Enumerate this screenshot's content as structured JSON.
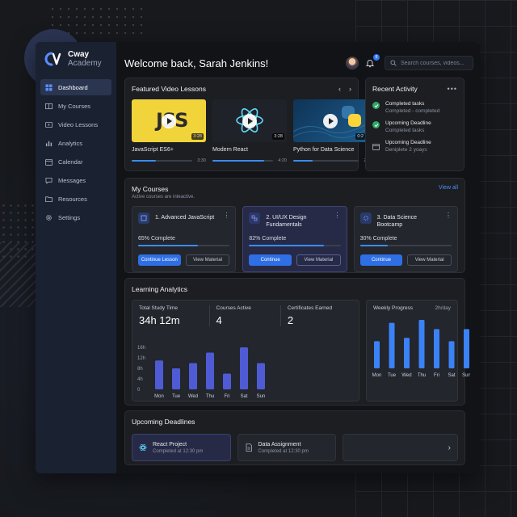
{
  "brand": {
    "name": "Cway",
    "sub": "Academy"
  },
  "nav": [
    {
      "label": "Dashboard",
      "icon": "dashboard-icon",
      "active": true
    },
    {
      "label": "My Courses",
      "icon": "book-icon"
    },
    {
      "label": "Video Lessons",
      "icon": "video-icon"
    },
    {
      "label": "Analytics",
      "icon": "bar-chart-icon"
    },
    {
      "label": "Calendar",
      "icon": "calendar-icon"
    },
    {
      "label": "Messages",
      "icon": "message-icon"
    },
    {
      "label": "Resources",
      "icon": "folder-icon"
    },
    {
      "label": "Settings",
      "icon": "gear-icon"
    }
  ],
  "header": {
    "welcome": "Welcome back, Sarah Jenkins!",
    "notifications": "6",
    "search_placeholder": "Search courses, videos..."
  },
  "featured": {
    "title": "Featured Video Lessons",
    "prev": "‹",
    "next": "›",
    "videos": [
      {
        "title": "JavaScript ES6+",
        "duration": "3:28",
        "time": "3:30",
        "progress": 0.4,
        "thumb_text": "JSS"
      },
      {
        "title": "Modern React",
        "duration": "3:28",
        "time": "4:20",
        "progress": 0.85
      },
      {
        "title": "Python for Data Science",
        "duration": "0:2",
        "time": "2:",
        "progress": 0.3
      }
    ]
  },
  "activity": {
    "title": "Recent Activity",
    "menu": "•••",
    "items": [
      {
        "title": "Completed tasks",
        "sub": "Completed - completed",
        "icon": "check-icon"
      },
      {
        "title": "Upcoming Deadline",
        "sub": "Completed tasks",
        "icon": "check-icon"
      },
      {
        "title": "Upcoming Deadline",
        "sub": "Deniplete 2 yoays",
        "icon": "calendar-icon"
      }
    ]
  },
  "courses": {
    "title": "My Courses",
    "subtitle": "Active courses are inteactive.",
    "view_all": "View all",
    "items": [
      {
        "name": "1. Advanced JavaScript",
        "progress_label": "65% Complete",
        "progress": 0.65,
        "primary": "Continue Lesson",
        "secondary": "View Material"
      },
      {
        "name": "2. UI/UX Design Fundamentals",
        "progress_label": "82% Complete",
        "progress": 0.82,
        "primary": "Continue",
        "secondary": "View Material",
        "selected": true
      },
      {
        "name": "3. Data Science Bootcamp",
        "progress_label": "30% Complete",
        "progress": 0.3,
        "primary": "Continue",
        "secondary": "View Material"
      }
    ],
    "menu": "⋮"
  },
  "analytics": {
    "title": "Learning Analytics",
    "stats": [
      {
        "label": "Total Study Time",
        "value": "34h 12m"
      },
      {
        "label": "Courses Active",
        "value": "4"
      },
      {
        "label": "Certificates Earned",
        "value": "2"
      }
    ],
    "weekly_title": "Weekly Progress",
    "weekly_unit": "2h/day"
  },
  "chart_data": [
    {
      "type": "bar",
      "categories": [
        "Mon",
        "Tue",
        "Wed",
        "Thu",
        "Fri",
        "Sat",
        "Sun"
      ],
      "values": [
        11,
        8,
        10,
        14,
        6,
        16,
        10
      ],
      "ylim": [
        0,
        16
      ],
      "yticks": [
        "16h",
        "12h",
        "8h",
        "4h",
        "0"
      ],
      "color": "#4f5bd5"
    },
    {
      "type": "bar",
      "title": "Weekly Progress",
      "categories": [
        "Mon",
        "Tue",
        "Wed",
        "Thu",
        "Fri",
        "Sat",
        "Sun"
      ],
      "values": [
        0.56,
        0.94,
        0.63,
        1.0,
        0.81,
        0.56,
        0.81
      ],
      "ylim": [
        0,
        1
      ],
      "color": "#3b82f6"
    }
  ],
  "deadlines": {
    "title": "Upcoming Deadlines",
    "items": [
      {
        "title": "React Project",
        "sub": "Completed at 12:30 pm",
        "icon": "react-icon"
      },
      {
        "title": "Data Assignment",
        "sub": "Completed at 12:30 pm",
        "icon": "document-icon"
      }
    ],
    "more": "›"
  }
}
